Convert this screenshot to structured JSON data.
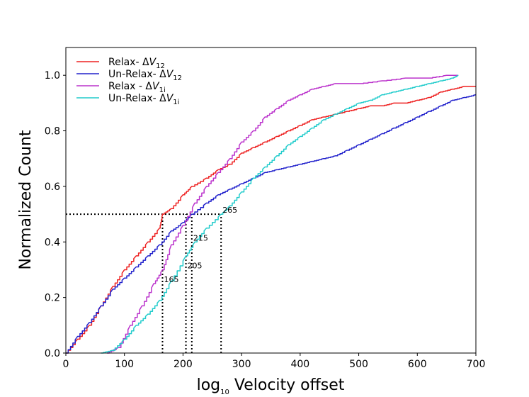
{
  "chart_data": {
    "type": "line",
    "title": "",
    "xlabel": {
      "main": "log",
      "sub": "10",
      "rest": " Velocity offset"
    },
    "ylabel": "Normalized Count",
    "xlim": [
      0,
      700
    ],
    "ylim": [
      0,
      1.1
    ],
    "x_ticks": [
      0,
      100,
      200,
      300,
      400,
      500,
      600,
      700
    ],
    "y_ticks": [
      0.0,
      0.2,
      0.4,
      0.6,
      0.8,
      1.0
    ],
    "x_tick_labels": [
      "0",
      "100",
      "200",
      "300",
      "400",
      "500",
      "600",
      "700"
    ],
    "y_tick_labels": [
      "0.0",
      "0.2",
      "0.4",
      "0.6",
      "0.8",
      "1.0"
    ],
    "grid": false,
    "legend_position": "top-left",
    "series": [
      {
        "name": "Relax- ΔV12",
        "legend": {
          "pre": "Relax- Δ",
          "var": "V",
          "sub": "12"
        },
        "color": "#ee2222",
        "x": [
          0,
          20,
          40,
          60,
          80,
          100,
          120,
          140,
          160,
          165,
          180,
          200,
          215,
          240,
          260,
          280,
          300,
          320,
          340,
          360,
          380,
          400,
          420,
          440,
          460,
          480,
          500,
          520,
          540,
          560,
          580,
          600,
          620,
          640,
          660,
          680,
          700
        ],
        "y": [
          0.0,
          0.05,
          0.1,
          0.17,
          0.24,
          0.3,
          0.35,
          0.4,
          0.45,
          0.5,
          0.52,
          0.57,
          0.6,
          0.63,
          0.66,
          0.68,
          0.72,
          0.74,
          0.76,
          0.78,
          0.8,
          0.82,
          0.84,
          0.85,
          0.86,
          0.87,
          0.88,
          0.89,
          0.89,
          0.9,
          0.9,
          0.91,
          0.92,
          0.94,
          0.95,
          0.96,
          0.96
        ]
      },
      {
        "name": "Un-Relax- ΔV12",
        "legend": {
          "pre": "Un-Relax- Δ",
          "var": "V",
          "sub": "12"
        },
        "color": "#2222cc",
        "x": [
          0,
          20,
          40,
          60,
          80,
          100,
          120,
          140,
          160,
          180,
          200,
          215,
          240,
          260,
          280,
          300,
          320,
          340,
          360,
          380,
          400,
          420,
          440,
          460,
          480,
          500,
          520,
          540,
          560,
          580,
          600,
          620,
          640,
          660,
          680,
          700
        ],
        "y": [
          0.0,
          0.06,
          0.11,
          0.17,
          0.23,
          0.27,
          0.31,
          0.35,
          0.39,
          0.44,
          0.47,
          0.5,
          0.54,
          0.57,
          0.59,
          0.61,
          0.63,
          0.65,
          0.66,
          0.67,
          0.68,
          0.69,
          0.7,
          0.71,
          0.73,
          0.75,
          0.77,
          0.79,
          0.81,
          0.83,
          0.85,
          0.87,
          0.89,
          0.91,
          0.92,
          0.93
        ]
      },
      {
        "name": "Relax - ΔV1i",
        "legend": {
          "pre": "Relax - Δ",
          "var": "V",
          "sub": "1i"
        },
        "color": "#bb33cc",
        "x": [
          70,
          90,
          110,
          130,
          150,
          165,
          180,
          200,
          220,
          240,
          260,
          280,
          300,
          320,
          340,
          360,
          380,
          400,
          420,
          440,
          460,
          480,
          500,
          540,
          580,
          620,
          650,
          670
        ],
        "y": [
          0.0,
          0.02,
          0.1,
          0.17,
          0.25,
          0.3,
          0.39,
          0.46,
          0.54,
          0.6,
          0.65,
          0.7,
          0.76,
          0.8,
          0.85,
          0.88,
          0.91,
          0.93,
          0.95,
          0.96,
          0.97,
          0.97,
          0.97,
          0.98,
          0.99,
          0.99,
          1.0,
          1.0
        ]
      },
      {
        "name": "Un-Relax- ΔV1i",
        "legend": {
          "pre": "Un-Relax- Δ",
          "var": "V",
          "sub": "1i"
        },
        "color": "#22cccc",
        "x": [
          60,
          80,
          100,
          120,
          140,
          160,
          180,
          205,
          220,
          240,
          265,
          280,
          300,
          320,
          340,
          360,
          380,
          400,
          420,
          440,
          460,
          480,
          500,
          520,
          540,
          560,
          580,
          600,
          620,
          640,
          660,
          670
        ],
        "y": [
          0.0,
          0.01,
          0.05,
          0.1,
          0.14,
          0.19,
          0.26,
          0.35,
          0.4,
          0.45,
          0.5,
          0.53,
          0.58,
          0.63,
          0.67,
          0.71,
          0.75,
          0.78,
          0.81,
          0.84,
          0.86,
          0.88,
          0.9,
          0.91,
          0.93,
          0.94,
          0.95,
          0.96,
          0.97,
          0.98,
          0.99,
          1.0
        ]
      }
    ],
    "reference_lines": {
      "horizontal": {
        "y": 0.5,
        "x_from": 0,
        "x_to": 265
      },
      "vertical": [
        {
          "x": 165,
          "label": "165",
          "label_y": 0.25
        },
        {
          "x": 205,
          "label": "205",
          "label_y": 0.3
        },
        {
          "x": 215,
          "label": "215",
          "label_y": 0.4
        },
        {
          "x": 265,
          "label": "265",
          "label_y": 0.5
        }
      ]
    }
  }
}
